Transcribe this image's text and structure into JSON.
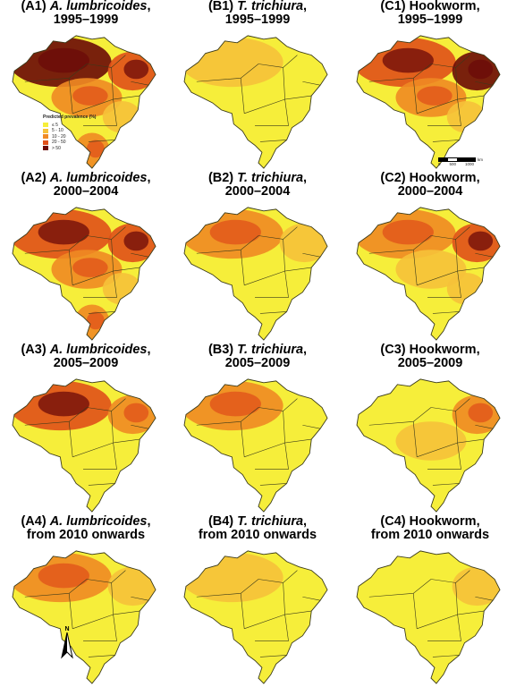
{
  "colors": {
    "background": "#ffffff",
    "class_le5": "#f6ee3a",
    "class_5_10": "#f6c13a",
    "class_10_20": "#f08a24",
    "class_20_50": "#e0501a",
    "class_gt50": "#6b0a08",
    "boundary": "#3a3a1a"
  },
  "panels": [
    {
      "id": "A1",
      "label": "(A1)",
      "species": "A. lumbricoides",
      "italic": true,
      "period": "1995–1999",
      "levels": {
        "north": 4,
        "northeast": 3,
        "central": 2,
        "south": 2,
        "east": 1
      }
    },
    {
      "id": "B1",
      "label": "(B1)",
      "species": "T. trichiura",
      "italic": true,
      "period": "1995–1999",
      "levels": {
        "north": 1,
        "northeast": 0,
        "central": 0,
        "south": 0,
        "east": 0
      }
    },
    {
      "id": "C1",
      "label": "(C1)",
      "species": "Hookworm",
      "italic": false,
      "period": "1995–1999",
      "levels": {
        "north": 3,
        "northeast": 4,
        "central": 2,
        "south": 0,
        "east": 1
      }
    },
    {
      "id": "A2",
      "label": "(A2)",
      "species": "A. lumbricoides",
      "italic": true,
      "period": "2000–2004",
      "levels": {
        "north": 3,
        "northeast": 3,
        "central": 2,
        "south": 2,
        "east": 1
      }
    },
    {
      "id": "B2",
      "label": "(B2)",
      "species": "T. trichiura",
      "italic": true,
      "period": "2000–2004",
      "levels": {
        "north": 2,
        "northeast": 1,
        "central": 0,
        "south": 0,
        "east": 0
      }
    },
    {
      "id": "C2",
      "label": "(C2)",
      "species": "Hookworm",
      "italic": false,
      "period": "2000–2004",
      "levels": {
        "north": 2,
        "northeast": 3,
        "central": 1,
        "south": 0,
        "east": 1
      }
    },
    {
      "id": "A3",
      "label": "(A3)",
      "species": "A. lumbricoides",
      "italic": true,
      "period": "2005–2009",
      "levels": {
        "north": 3,
        "northeast": 2,
        "central": 0,
        "south": 0,
        "east": 0
      }
    },
    {
      "id": "B3",
      "label": "(B3)",
      "species": "T. trichiura",
      "italic": true,
      "period": "2005–2009",
      "levels": {
        "north": 2,
        "northeast": 0,
        "central": 0,
        "south": 0,
        "east": 0
      }
    },
    {
      "id": "C3",
      "label": "(C3)",
      "species": "Hookworm",
      "italic": false,
      "period": "2005–2009",
      "levels": {
        "north": 0,
        "northeast": 2,
        "central": 1,
        "south": 0,
        "east": 0
      }
    },
    {
      "id": "A4",
      "label": "(A4)",
      "species": "A. lumbricoides",
      "italic": true,
      "period": "from 2010 onwards",
      "levels": {
        "north": 2,
        "northeast": 1,
        "central": 0,
        "south": 0,
        "east": 0
      }
    },
    {
      "id": "B4",
      "label": "(B4)",
      "species": "T. trichiura",
      "italic": true,
      "period": "from 2010 onwards",
      "levels": {
        "north": 1,
        "northeast": 0,
        "central": 0,
        "south": 0,
        "east": 0
      }
    },
    {
      "id": "C4",
      "label": "(C4)",
      "species": "Hookworm",
      "italic": false,
      "period": "from 2010 onwards",
      "levels": {
        "north": 0,
        "northeast": 1,
        "central": 0,
        "south": 0,
        "east": 0
      }
    }
  ],
  "legend": {
    "title": "Predicted prevalence (%)",
    "items": [
      {
        "label": "≤ 5",
        "color_key": "class_le5"
      },
      {
        "label": "5 - 10",
        "color_key": "class_5_10"
      },
      {
        "label": "10 - 20",
        "color_key": "class_10_20"
      },
      {
        "label": "20 - 50",
        "color_key": "class_20_50"
      },
      {
        "label": "> 50",
        "color_key": "class_gt50"
      }
    ]
  },
  "scale": {
    "labels": [
      "0",
      "500",
      "1000"
    ],
    "unit": "km"
  },
  "north_arrow": "N"
}
